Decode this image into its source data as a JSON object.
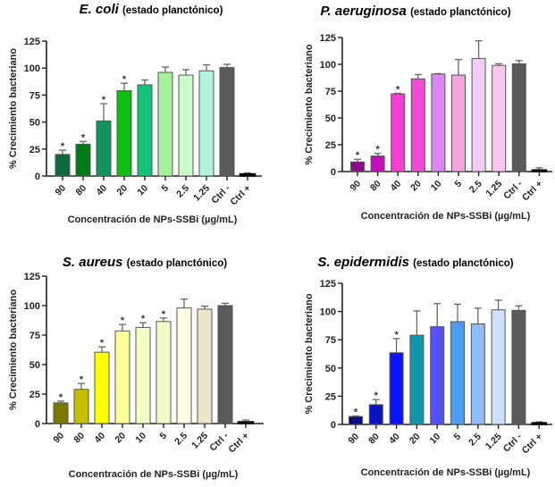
{
  "chart_data": [
    {
      "type": "bar",
      "title_species": "E. coli",
      "title_rest": "(estado planctónico)",
      "xlabel": "Concentración de NPs-SSBi (µg/mL)",
      "ylabel": "% Crecimiento bacteriano",
      "ylim": [
        0,
        125
      ],
      "yticks": [
        0,
        25,
        50,
        75,
        100,
        125
      ],
      "categories": [
        "90",
        "80",
        "40",
        "20",
        "10",
        "5",
        "2.5",
        "1.25",
        "Ctrl -",
        "Ctrl +"
      ],
      "values": [
        20,
        29.5,
        51,
        79,
        84.5,
        96,
        93.5,
        97.5,
        100.5,
        2
      ],
      "errors": [
        4,
        2.5,
        16,
        7,
        4.5,
        5,
        5,
        5.5,
        3,
        0.8
      ],
      "significant": [
        true,
        true,
        true,
        true,
        false,
        false,
        false,
        false,
        false,
        false
      ],
      "colors": [
        "#0b6b3f",
        "#007a16",
        "#119459",
        "#0fbe12",
        "#12c27a",
        "#a3f29a",
        "#cbfcc8",
        "#b0f5dc",
        "#5a5a5a",
        "#111111"
      ]
    },
    {
      "type": "bar",
      "title_species": "P. aeruginosa",
      "title_rest": "(estado planctónico)",
      "xlabel": "Concentración de NPs-SSBi (µg/mL)",
      "ylabel": "% Crecimiento bacteriano",
      "ylim": [
        0,
        125
      ],
      "yticks": [
        0,
        25,
        50,
        75,
        100,
        125
      ],
      "categories": [
        "90",
        "80",
        "40",
        "20",
        "10",
        "5",
        "2.5",
        "1.25",
        "Ctrl -",
        "Ctrl +"
      ],
      "values": [
        9,
        14.5,
        72.5,
        86.5,
        91,
        90,
        105.5,
        99,
        100.5,
        1.5
      ],
      "errors": [
        2.5,
        2.5,
        0.5,
        4,
        0.3,
        14.5,
        16.5,
        1.5,
        3,
        2
      ],
      "significant": [
        true,
        true,
        true,
        false,
        false,
        false,
        false,
        false,
        false,
        false
      ],
      "colors": [
        "#8b0a8b",
        "#c20fb9",
        "#f23fd0",
        "#f04ad6",
        "#dd85f0",
        "#f4a4e0",
        "#f0cdf5",
        "#f8c8ec",
        "#5a5a5a",
        "#111111"
      ]
    },
    {
      "type": "bar",
      "title_species": "S. aureus",
      "title_rest": "(estado planctónico)",
      "xlabel": "Concentración de NPs-SSBi (µg/mL)",
      "ylabel": "% Crecimiento bacteriano",
      "ylim": [
        0,
        125
      ],
      "yticks": [
        0,
        25,
        50,
        75,
        100,
        125
      ],
      "categories": [
        "90",
        "80",
        "40",
        "20",
        "10",
        "5",
        "2.5",
        "1.25",
        "Ctrl -",
        "Ctrl +"
      ],
      "values": [
        17.5,
        29,
        60.5,
        78.5,
        81.5,
        86.5,
        98,
        97,
        100,
        1.5
      ],
      "errors": [
        1.5,
        5,
        4.5,
        5.5,
        4,
        3,
        7.5,
        2.5,
        2,
        1.5
      ],
      "significant": [
        true,
        true,
        true,
        true,
        true,
        true,
        false,
        false,
        false,
        false
      ],
      "colors": [
        "#7a7a00",
        "#c6c100",
        "#ffff00",
        "#ffff9a",
        "#f5ffc2",
        "#f1fbc6",
        "#fffde2",
        "#ece6c6",
        "#5a5a5a",
        "#111111"
      ]
    },
    {
      "type": "bar",
      "title_species": "S. epidermidis",
      "title_rest": "(estado planctónico)",
      "xlabel": "Concentración de NPs-SSBi (µg/mL)",
      "ylabel": "% Crecimiento bacteriano",
      "ylim": [
        0,
        125
      ],
      "yticks": [
        0,
        25,
        50,
        75,
        100,
        125
      ],
      "categories": [
        "90",
        "80",
        "40",
        "20",
        "10",
        "5",
        "2.5",
        "1.25",
        "Ctrl -",
        "Ctrl +"
      ],
      "values": [
        7,
        17.5,
        63.5,
        79,
        86.5,
        91,
        89,
        101.5,
        101,
        1.5
      ],
      "errors": [
        0.5,
        4.5,
        12.5,
        21.5,
        20.5,
        15.5,
        14,
        8.5,
        4,
        0.8
      ],
      "significant": [
        true,
        true,
        true,
        false,
        false,
        false,
        false,
        false,
        false,
        false
      ],
      "colors": [
        "#0b0b80",
        "#0a14c0",
        "#0a14f5",
        "#1296ad",
        "#5650f5",
        "#4f9cf7",
        "#8fbdf7",
        "#cde0fa",
        "#5a5a5a",
        "#111111"
      ]
    }
  ]
}
